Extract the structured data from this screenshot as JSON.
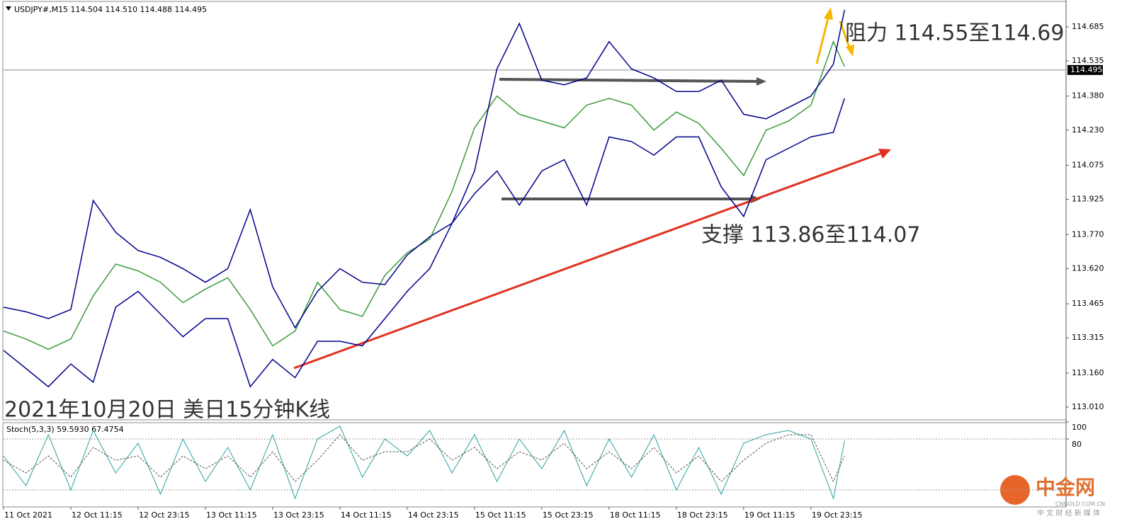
{
  "chart_data": [
    {
      "type": "line",
      "title": "USDJPY#,M15  114.504 114.510 114.488 114.495",
      "x": [
        0,
        16,
        32,
        48,
        64,
        80,
        96,
        112,
        128,
        144,
        160,
        176,
        192,
        208,
        224,
        240,
        256,
        272,
        288,
        304,
        320,
        336,
        352,
        368,
        384,
        400,
        416,
        432,
        448,
        464,
        480,
        496,
        512,
        528,
        544,
        560,
        576,
        592,
        600
      ],
      "xlim": [
        0,
        758
      ],
      "xticks": [
        {
          "value": 0,
          "label": "11 Oct 2021"
        },
        {
          "value": 48,
          "label": "12 Oct 11:15"
        },
        {
          "value": 96,
          "label": "12 Oct 23:15"
        },
        {
          "value": 144,
          "label": "13 Oct 11:15"
        },
        {
          "value": 192,
          "label": "13 Oct 23:15"
        },
        {
          "value": 240,
          "label": "14 Oct 11:15"
        },
        {
          "value": 288,
          "label": "14 Oct 23:15"
        },
        {
          "value": 336,
          "label": "15 Oct 11:15"
        },
        {
          "value": 384,
          "label": "15 Oct 23:15"
        },
        {
          "value": 432,
          "label": "18 Oct 11:15"
        },
        {
          "value": 480,
          "label": "18 Oct 23:15"
        },
        {
          "value": 528,
          "label": "19 Oct 11:15"
        },
        {
          "value": 576,
          "label": "19 Oct 23:15"
        }
      ],
      "ylim": [
        112.954,
        114.797
      ],
      "yticks": [
        114.685,
        114.535,
        {
          "value": 114.38,
          "label": "114.380"
        },
        {
          "value": 114.23,
          "label": "114.230"
        },
        114.075,
        113.925,
        {
          "value": 113.77,
          "label": "113.770"
        },
        {
          "value": 113.62,
          "label": "113.620"
        },
        113.465,
        113.315,
        {
          "value": 113.16,
          "label": "113.160"
        },
        {
          "value": 113.01,
          "label": "113.010"
        }
      ],
      "current_price": {
        "value": 114.495,
        "label": "114.495"
      },
      "series": [
        {
          "color": "#3c9a3c",
          "values": [
            113.345,
            113.31,
            113.265,
            113.31,
            113.5,
            113.64,
            113.61,
            113.56,
            113.47,
            113.53,
            113.58,
            113.44,
            113.28,
            113.345,
            113.56,
            113.44,
            113.41,
            113.59,
            113.69,
            113.75,
            113.96,
            114.24,
            114.38,
            114.3,
            114.27,
            114.24,
            114.34,
            114.37,
            114.34,
            114.23,
            114.31,
            114.26,
            114.15,
            114.03,
            114.23,
            114.27,
            114.34,
            114.62,
            114.51
          ]
        },
        {
          "color": "#00008b",
          "values": [
            113.45,
            113.43,
            113.4,
            113.44,
            113.92,
            113.78,
            113.7,
            113.67,
            113.62,
            113.56,
            113.62,
            113.88,
            113.54,
            113.36,
            113.52,
            113.62,
            113.56,
            113.55,
            113.68,
            113.76,
            113.82,
            114.05,
            114.5,
            114.7,
            114.45,
            114.43,
            114.46,
            114.62,
            114.5,
            114.46,
            114.4,
            114.4,
            114.45,
            114.3,
            114.28,
            114.33,
            114.38,
            114.52,
            114.76
          ]
        },
        {
          "color": "#00008b",
          "values": [
            113.26,
            113.18,
            113.1,
            113.2,
            113.12,
            113.45,
            113.52,
            113.42,
            113.32,
            113.4,
            113.4,
            113.1,
            113.22,
            113.14,
            113.3,
            113.3,
            113.28,
            113.4,
            113.52,
            113.62,
            113.82,
            113.95,
            114.05,
            113.9,
            114.05,
            114.1,
            113.9,
            114.2,
            114.18,
            114.12,
            114.2,
            114.2,
            113.98,
            113.85,
            114.1,
            114.15,
            114.2,
            114.22,
            114.37
          ]
        }
      ],
      "annotations": [
        "阻力 114.55至114.69",
        "支撑 113.86至114.07",
        "2021年10月20日 美日15分钟K线"
      ]
    },
    {
      "type": "line",
      "title": "Stoch(5,3,3) 59.5930 67.4754",
      "x": [
        0,
        16,
        32,
        48,
        64,
        80,
        96,
        112,
        128,
        144,
        160,
        176,
        192,
        208,
        224,
        240,
        256,
        272,
        288,
        304,
        320,
        336,
        352,
        368,
        384,
        400,
        416,
        432,
        448,
        464,
        480,
        496,
        512,
        528,
        544,
        560,
        576,
        592,
        600
      ],
      "xlim": [
        0,
        758
      ],
      "ylim": [
        0,
        100
      ],
      "yticks": [
        100,
        80
      ],
      "levels": [
        80,
        20
      ],
      "series": [
        {
          "color": "#2aa0a0",
          "dash": false,
          "values": [
            60,
            25,
            85,
            20,
            90,
            40,
            75,
            15,
            80,
            30,
            70,
            20,
            85,
            10,
            80,
            95,
            35,
            80,
            60,
            90,
            40,
            85,
            30,
            80,
            45,
            90,
            25,
            80,
            35,
            85,
            20,
            70,
            15,
            75,
            85,
            90,
            80,
            10,
            78
          ]
        },
        {
          "color": "#555555",
          "dash": true,
          "values": [
            55,
            40,
            60,
            35,
            70,
            55,
            60,
            35,
            60,
            45,
            60,
            35,
            65,
            30,
            55,
            85,
            55,
            65,
            65,
            80,
            55,
            70,
            45,
            65,
            55,
            75,
            45,
            65,
            45,
            70,
            40,
            60,
            30,
            55,
            75,
            85,
            85,
            30,
            60
          ]
        }
      ]
    }
  ],
  "watermark": {
    "logo": "中金网",
    "domain": "CNGOLD.COM.CN",
    "slogan": "中 文 财 经 新 媒 体"
  }
}
